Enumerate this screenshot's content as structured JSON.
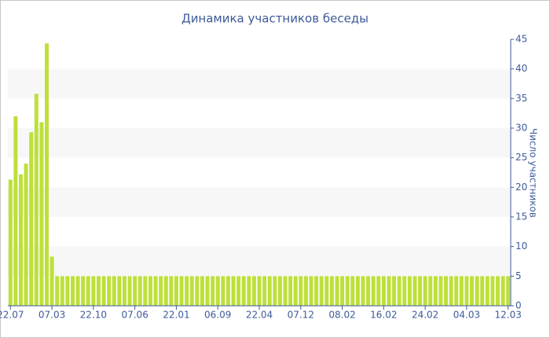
{
  "chart_data": {
    "type": "bar",
    "title": "Динамика участников беседы",
    "y_label": "Число участников",
    "categories": [
      "22.07",
      null,
      null,
      null,
      null,
      null,
      null,
      null,
      "07.03",
      null,
      null,
      null,
      null,
      null,
      null,
      null,
      "22.10",
      null,
      null,
      null,
      null,
      null,
      null,
      null,
      "07.06",
      null,
      null,
      null,
      null,
      null,
      null,
      null,
      "22.01",
      null,
      null,
      null,
      null,
      null,
      null,
      null,
      "06.09",
      null,
      null,
      null,
      null,
      null,
      null,
      null,
      "22.04",
      null,
      null,
      null,
      null,
      null,
      null,
      null,
      "07.12",
      null,
      null,
      null,
      null,
      null,
      null,
      null,
      "08.02",
      null,
      null,
      null,
      null,
      null,
      null,
      null,
      "16.02",
      null,
      null,
      null,
      null,
      null,
      null,
      null,
      "24.02",
      null,
      null,
      null,
      null,
      null,
      null,
      null,
      "04.03",
      null,
      null,
      null,
      null,
      null,
      null,
      null,
      "12.03"
    ],
    "values": [
      21.3,
      32,
      22.2,
      24,
      29.3,
      35.8,
      31,
      44.3,
      8.3,
      5,
      5,
      5,
      5,
      5,
      5,
      5,
      5,
      5,
      5,
      5,
      5,
      5,
      5,
      5,
      5,
      5,
      5,
      5,
      5,
      5,
      5,
      5,
      5,
      5,
      5,
      5,
      5,
      5,
      5,
      5,
      5,
      5,
      5,
      5,
      5,
      5,
      5,
      5,
      5,
      5,
      5,
      5,
      5,
      5,
      5,
      5,
      5,
      5,
      5,
      5,
      5,
      5,
      5,
      5,
      5,
      5,
      5,
      5,
      5,
      5,
      5,
      5,
      5,
      5,
      5,
      5,
      5,
      5,
      5,
      5,
      5,
      5,
      5,
      5,
      5,
      5,
      5,
      5,
      5,
      5,
      5,
      5,
      5,
      5,
      5,
      5,
      5
    ],
    "color": "#bde03a",
    "ylim": [
      0,
      45
    ],
    "yticks": [
      0,
      5,
      10,
      15,
      20,
      25,
      30,
      35,
      40,
      45
    ],
    "grid": true
  }
}
